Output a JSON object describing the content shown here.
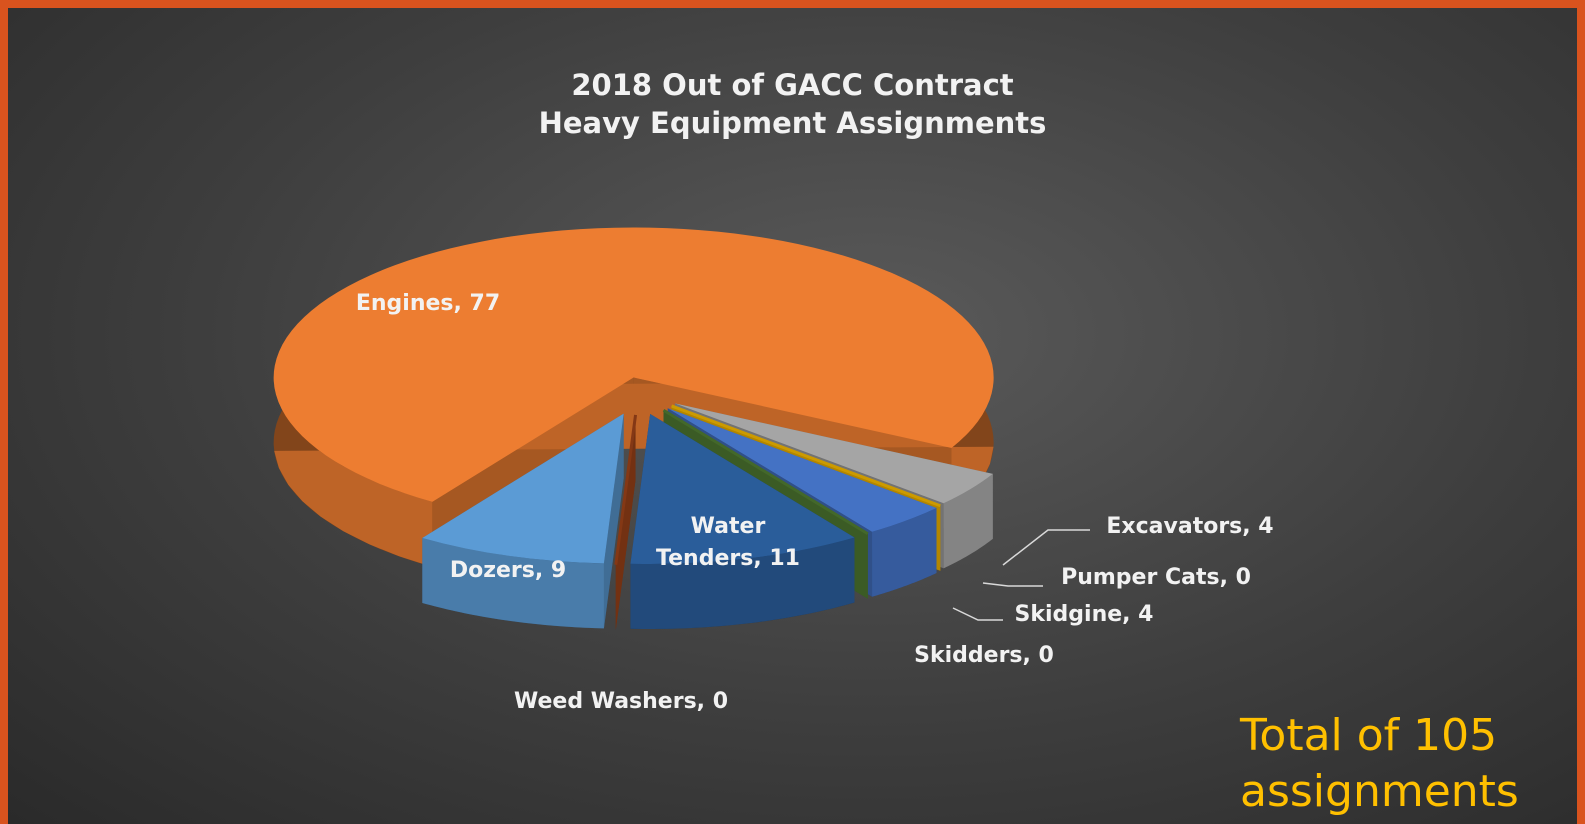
{
  "chart_data": {
    "type": "pie",
    "title": "2018 Out of GACC Contract\nHeavy Equipment Assignments",
    "values": [
      77,
      9,
      0,
      11,
      0,
      4,
      0,
      4
    ],
    "value_labels": [
      "Engines, 77",
      "Dozers, 9",
      "Weed Washers, 0",
      "Water\nTenders, 11",
      "Skidders, 0",
      "Skidgine, 4",
      "Pumper Cats, 0",
      "Excavators, 4"
    ],
    "colors": [
      "#ed7d31",
      "#5b9bd5",
      "#a5461a",
      "#2a5d9a",
      "#548235",
      "#4472c4",
      "#ffc000",
      "#a5a5a5"
    ],
    "annotation": "Total of 105\nassignments"
  }
}
